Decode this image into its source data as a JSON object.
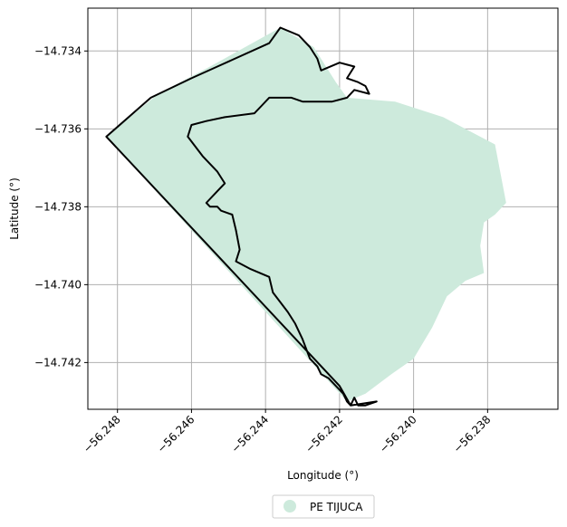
{
  "chart_data": {
    "type": "map",
    "title": "",
    "xlabel": "Longitude (°)",
    "ylabel": "Latitude (°)",
    "xlim": [
      -56.2488,
      -56.2361
    ],
    "ylim": [
      -14.7432,
      -14.7329
    ],
    "x_ticks": [
      -56.248,
      -56.246,
      -56.244,
      -56.242,
      -56.24,
      -56.238
    ],
    "x_tick_labels": [
      "−56.248",
      "−56.246",
      "−56.244",
      "−56.242",
      "−56.240",
      "−56.238"
    ],
    "y_ticks": [
      -14.734,
      -14.736,
      -14.738,
      -14.74,
      -14.742
    ],
    "y_tick_labels": [
      "−14.734",
      "−14.736",
      "−14.738",
      "−14.740",
      "−14.742"
    ],
    "grid": true,
    "legend_placement": "bottom-center",
    "legend": [
      {
        "name": "PE TIJUCA",
        "color": "#cdeadc"
      }
    ],
    "fill_color": "#cdeadc",
    "outline_color": "#000000",
    "fill_polygon": [
      [
        -56.2483,
        -14.7362
      ],
      [
        -56.2469,
        -14.7351
      ],
      [
        -56.2455,
        -14.7344
      ],
      [
        -56.2436,
        -14.7334
      ],
      [
        -56.2427,
        -14.7339
      ],
      [
        -56.2421,
        -14.7348
      ],
      [
        -56.2418,
        -14.7352
      ],
      [
        -56.2405,
        -14.7353
      ],
      [
        -56.2392,
        -14.7357
      ],
      [
        -56.2378,
        -14.7364
      ],
      [
        -56.2375,
        -14.7379
      ],
      [
        -56.2378,
        -14.7382
      ],
      [
        -56.2381,
        -14.7384
      ],
      [
        -56.2382,
        -14.739
      ],
      [
        -56.2381,
        -14.7397
      ],
      [
        -56.2386,
        -14.7399
      ],
      [
        -56.2391,
        -14.7403
      ],
      [
        -56.2395,
        -14.7411
      ],
      [
        -56.24,
        -14.7419
      ],
      [
        -56.2406,
        -14.7423
      ],
      [
        -56.2413,
        -14.7428
      ],
      [
        -56.2418,
        -14.743
      ]
    ],
    "outline_polygon": [
      [
        -56.2483,
        -14.7362
      ],
      [
        -56.2471,
        -14.7352
      ],
      [
        -56.246,
        -14.7347
      ],
      [
        -56.2453,
        -14.7344
      ],
      [
        -56.2439,
        -14.7338
      ],
      [
        -56.2436,
        -14.7334
      ],
      [
        -56.2431,
        -14.7336
      ],
      [
        -56.2428,
        -14.7339
      ],
      [
        -56.2426,
        -14.7342
      ],
      [
        -56.2425,
        -14.7345
      ],
      [
        -56.242,
        -14.7343
      ],
      [
        -56.2416,
        -14.7344
      ],
      [
        -56.2418,
        -14.7347
      ],
      [
        -56.2415,
        -14.7348
      ],
      [
        -56.2413,
        -14.7349
      ],
      [
        -56.2412,
        -14.7351
      ],
      [
        -56.2416,
        -14.735
      ],
      [
        -56.2418,
        -14.7352
      ],
      [
        -56.2422,
        -14.7353
      ],
      [
        -56.2427,
        -14.7353
      ],
      [
        -56.243,
        -14.7353
      ],
      [
        -56.2433,
        -14.7352
      ],
      [
        -56.2439,
        -14.7352
      ],
      [
        -56.2441,
        -14.7354
      ],
      [
        -56.2443,
        -14.7356
      ],
      [
        -56.2451,
        -14.7357
      ],
      [
        -56.2456,
        -14.7358
      ],
      [
        -56.246,
        -14.7359
      ],
      [
        -56.2461,
        -14.7362
      ],
      [
        -56.2457,
        -14.7367
      ],
      [
        -56.2453,
        -14.7371
      ],
      [
        -56.2451,
        -14.7374
      ],
      [
        -56.2453,
        -14.7376
      ],
      [
        -56.2456,
        -14.7379
      ],
      [
        -56.2455,
        -14.738
      ],
      [
        -56.2453,
        -14.738
      ],
      [
        -56.2452,
        -14.7381
      ],
      [
        -56.2449,
        -14.7382
      ],
      [
        -56.2448,
        -14.7386
      ],
      [
        -56.2447,
        -14.7391
      ],
      [
        -56.2448,
        -14.7394
      ],
      [
        -56.2444,
        -14.7396
      ],
      [
        -56.2439,
        -14.7398
      ],
      [
        -56.2438,
        -14.7402
      ],
      [
        -56.2434,
        -14.7407
      ],
      [
        -56.2432,
        -14.741
      ],
      [
        -56.243,
        -14.7414
      ],
      [
        -56.2428,
        -14.7419
      ],
      [
        -56.2426,
        -14.7421
      ],
      [
        -56.2425,
        -14.7423
      ],
      [
        -56.2423,
        -14.7424
      ],
      [
        -56.2421,
        -14.7426
      ],
      [
        -56.2419,
        -14.7428
      ],
      [
        -56.2418,
        -14.743
      ],
      [
        -56.2417,
        -14.7431
      ],
      [
        -56.2416,
        -14.7429
      ],
      [
        -56.2415,
        -14.7431
      ],
      [
        -56.2413,
        -14.7431
      ],
      [
        -56.241,
        -14.743
      ],
      [
        -56.2417,
        -14.7431
      ],
      [
        -56.242,
        -14.7426
      ]
    ]
  }
}
